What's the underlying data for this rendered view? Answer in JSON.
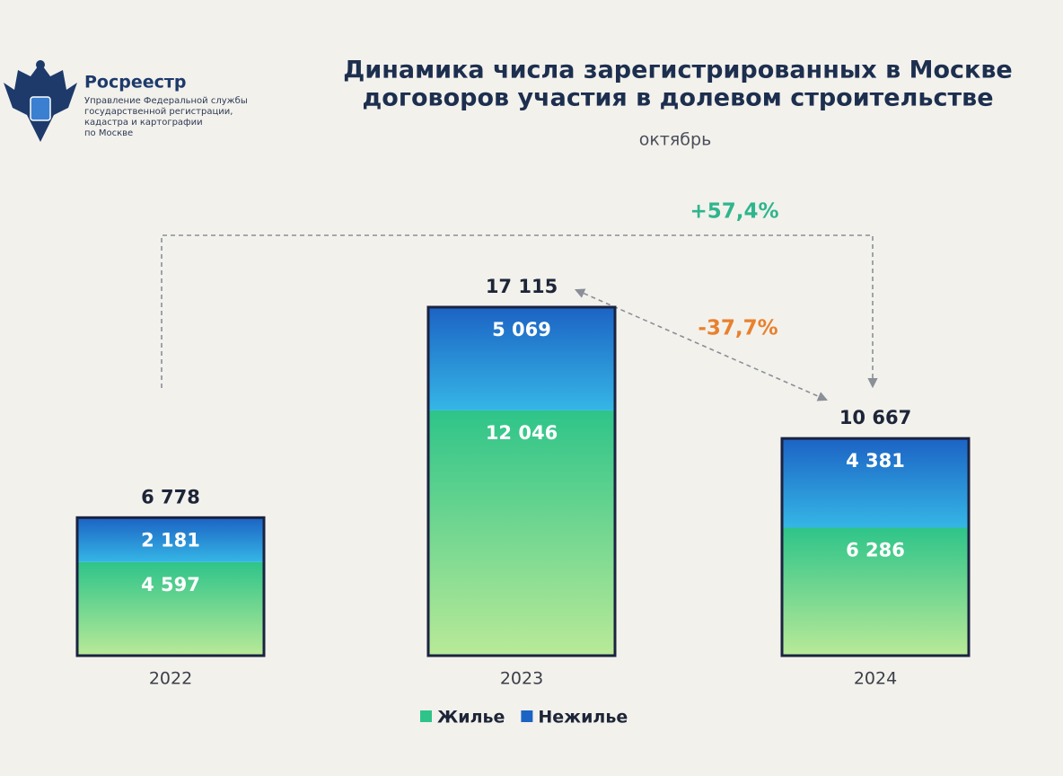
{
  "logo": {
    "name": "Росреестр",
    "org": [
      "Управление Федеральной службы",
      "государственной регистрации,",
      "кадастра и картографии",
      "по Москве"
    ]
  },
  "chart_data": {
    "type": "stacked-bar",
    "title": [
      "Динамика числа зарегистрированных в Москве",
      "договоров участия в долевом строительстве"
    ],
    "subtitle": "октябрь",
    "categories": [
      "2022",
      "2023",
      "2024"
    ],
    "series": [
      {
        "name": "Жилье",
        "color": "#2ec489",
        "values": [
          4597,
          12046,
          6286
        ],
        "value_labels": [
          "4 597",
          "12 046",
          "6 286"
        ]
      },
      {
        "name": "Нежилье",
        "color": "#1c63c4",
        "values": [
          2181,
          5069,
          4381
        ],
        "value_labels": [
          "2 181",
          "5 069",
          "4 381"
        ]
      }
    ],
    "totals": {
      "values": [
        6778,
        17115,
        10667
      ],
      "value_labels": [
        "6 778",
        "17 115",
        "10 667"
      ]
    },
    "annotations": [
      "+57,4%",
      "-37,7%"
    ]
  }
}
